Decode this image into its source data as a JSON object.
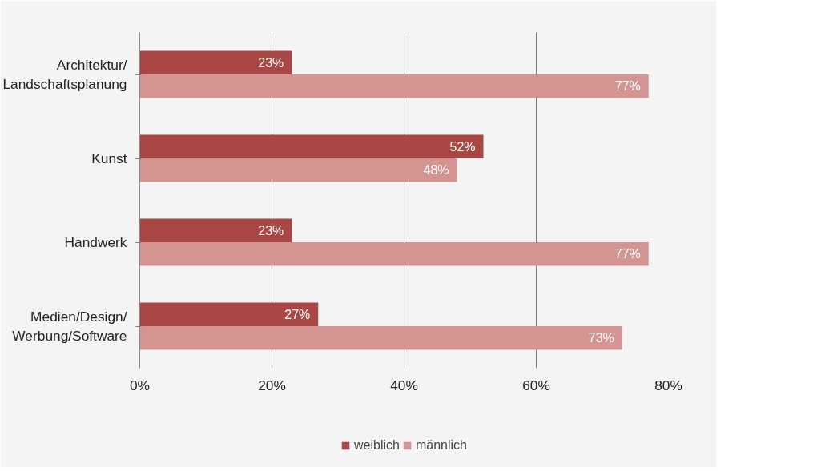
{
  "chart_data": {
    "type": "bar",
    "orientation": "horizontal",
    "categories": [
      "Architektur/\nLandschaftsplanung",
      "Kunst",
      "Handwerk",
      "Medien/Design/\nWerbung/Software"
    ],
    "series": [
      {
        "name": "weiblich",
        "color": "#a94744",
        "values": [
          23,
          52,
          23,
          27
        ],
        "value_labels": [
          "23%",
          "52%",
          "23%",
          "27%"
        ]
      },
      {
        "name": "männlich",
        "color": "#d39492",
        "values": [
          77,
          48,
          77,
          73
        ],
        "value_labels": [
          "77%",
          "48%",
          "77%",
          "73%"
        ]
      }
    ],
    "xlim": [
      0,
      80
    ],
    "xticks": [
      {
        "value": 0,
        "label": "0%"
      },
      {
        "value": 20,
        "label": "20%"
      },
      {
        "value": 40,
        "label": "40%"
      },
      {
        "value": 60,
        "label": "60%"
      },
      {
        "value": 80,
        "label": "80%"
      }
    ],
    "grid": "x",
    "legend": "bottom"
  }
}
